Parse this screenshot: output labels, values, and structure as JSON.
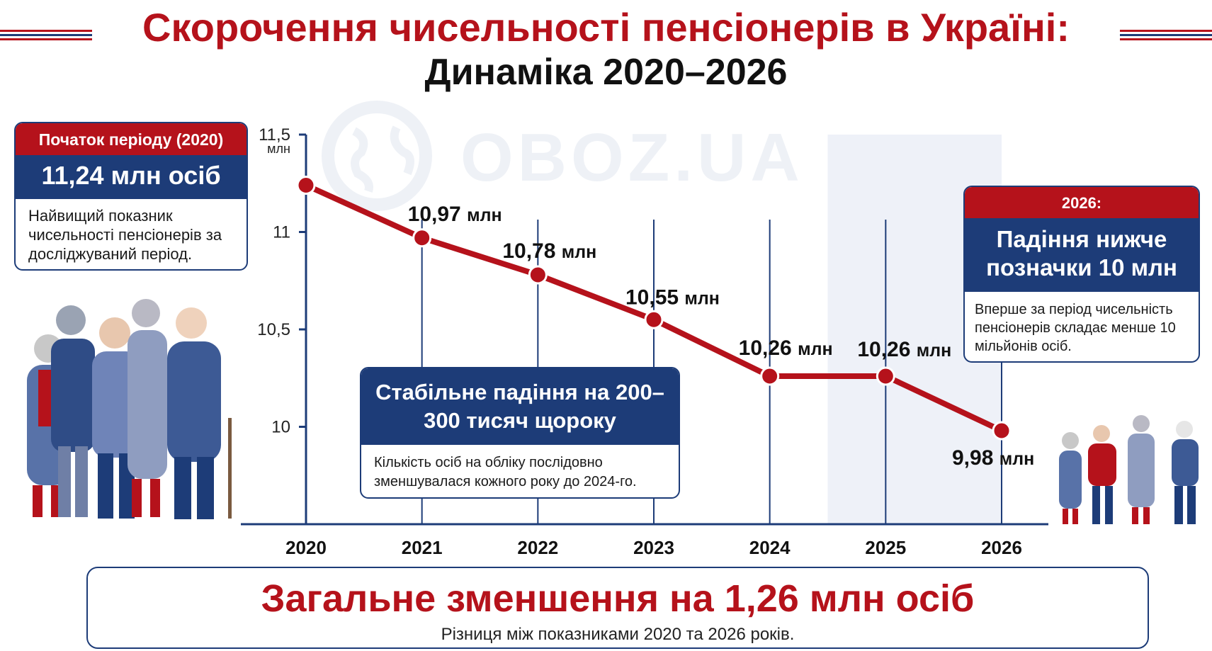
{
  "title": {
    "line1": "Скорочення чисельності пенсіонерів в Україні:",
    "line2": "Динаміка 2020–2026"
  },
  "watermark": "OBOZ.UA",
  "card_left": {
    "header": "Початок періоду (2020)",
    "value": "11,24 млн осіб",
    "text": "Найвищий показник чисельності пенсіонерів за досліджуваний період."
  },
  "card_right": {
    "header": "2026:",
    "value": "Падіння нижче позначки 10 млн",
    "text": "Вперше за період чисельність пенсіонерів складає менше 10 мільйонів осіб."
  },
  "card_mid": {
    "header": "Стабільне падіння на 200–300 тисяч щороку",
    "text": "Кількість осіб на обліку послідовно зменшувалася кожного року до 2024-го."
  },
  "summary": {
    "headline": "Загальне зменшення на 1,26 млн осіб",
    "subtext": "Різниця між показниками 2020 та 2026 років."
  },
  "colors": {
    "red": "#b5121b",
    "blue": "#1d3c78",
    "highlight_band": "#eef1f8"
  },
  "chart_data": {
    "type": "line",
    "x": [
      "2020",
      "2021",
      "2022",
      "2023",
      "2024",
      "2025",
      "2026"
    ],
    "series": [
      {
        "values": [
          11.24,
          10.97,
          10.78,
          10.55,
          10.26,
          10.26,
          9.98
        ],
        "labels": [
          "",
          "10,97 млн",
          "10,78 млн",
          "10,55 млн",
          "10,26 млн",
          "10,26 млн",
          "9,98 млн"
        ]
      }
    ],
    "y_ticks": [
      {
        "value": 10,
        "label": "10"
      },
      {
        "value": 10.5,
        "label": "10,5"
      },
      {
        "value": 11,
        "label": "11"
      },
      {
        "value": 11.5,
        "label": "11,5"
      }
    ],
    "y_unit": "млн",
    "ylim": [
      9.5,
      11.5
    ],
    "highlight_range": [
      "2025",
      "2026"
    ],
    "grid": false,
    "illustrations": [
      "elderly-group-left",
      "elderly-group-right"
    ]
  }
}
